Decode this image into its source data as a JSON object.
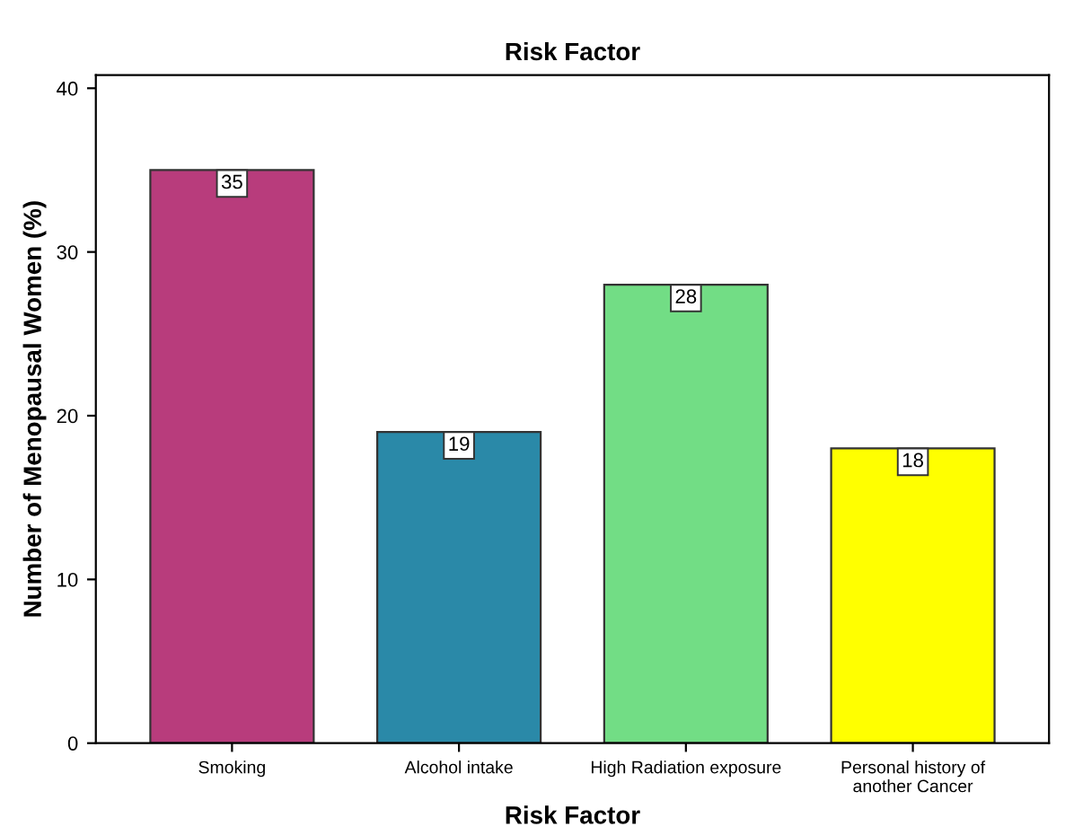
{
  "chart_data": {
    "type": "bar",
    "title": "Risk Factor",
    "xlabel": "Risk Factor",
    "ylabel": "Number of Menopausal Women (%)",
    "categories": [
      "Smoking",
      "Alcohol intake",
      "High Radiation exposure",
      "Personal history of\nanother Cancer"
    ],
    "values": [
      35,
      19,
      28,
      18
    ],
    "colors": [
      "#b83c7c",
      "#2a89a8",
      "#72dd85",
      "#ffff00"
    ],
    "ylim": [
      0,
      40.8
    ],
    "yticks": [
      0,
      10,
      20,
      30,
      40
    ],
    "grid": false,
    "data_labels": true
  }
}
